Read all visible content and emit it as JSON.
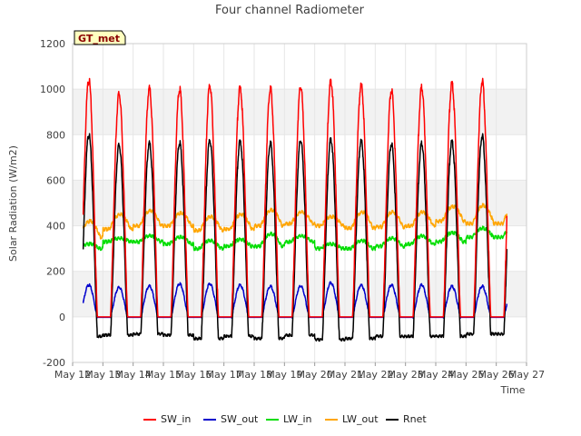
{
  "chart_data": {
    "type": "line",
    "title": "Four channel Radiometer",
    "xlabel": "Time",
    "ylabel": "Solar Radiation (W/m2)",
    "badge": "GT_met",
    "ylim": [
      -200,
      1200
    ],
    "yticks": [
      -200,
      0,
      200,
      400,
      600,
      800,
      1000,
      1200
    ],
    "x_days": [
      12,
      13,
      14,
      15,
      16,
      17,
      18,
      19,
      20,
      21,
      22,
      23,
      24,
      25,
      26,
      27
    ],
    "x_tick_labels": [
      "May 12",
      "May 13",
      "May 14",
      "May 15",
      "May 16",
      "May 17",
      "May 18",
      "May 19",
      "May 20",
      "May 21",
      "May 22",
      "May 23",
      "May 24",
      "May 25",
      "May 26",
      "May 27"
    ],
    "data_start_day": 12.35,
    "data_end_day": 26.35,
    "daily": {
      "days": [
        12,
        13,
        14,
        15,
        16,
        17,
        18,
        19,
        20,
        21,
        22,
        23,
        24,
        25
      ],
      "sw_in_peak": [
        1040,
        980,
        1000,
        1000,
        1015,
        1005,
        1005,
        1010,
        1035,
        1020,
        995,
        1005,
        1025,
        1035
      ],
      "sw_out_peak": [
        140,
        130,
        135,
        145,
        145,
        140,
        135,
        135,
        150,
        140,
        140,
        140,
        135,
        135
      ],
      "lw_in_night": [
        300,
        330,
        330,
        320,
        300,
        310,
        310,
        330,
        300,
        300,
        310,
        320,
        330,
        350
      ],
      "lw_in_day": [
        320,
        345,
        355,
        350,
        335,
        340,
        365,
        355,
        320,
        335,
        345,
        355,
        370,
        390
      ],
      "lw_out_night": [
        350,
        385,
        400,
        400,
        380,
        385,
        400,
        410,
        400,
        390,
        395,
        400,
        420,
        410
      ],
      "lw_out_day": [
        420,
        450,
        465,
        455,
        440,
        450,
        470,
        460,
        440,
        460,
        460,
        460,
        485,
        490
      ],
      "rnet_peak": [
        800,
        755,
        760,
        765,
        775,
        770,
        765,
        775,
        780,
        775,
        760,
        760,
        770,
        795
      ],
      "rnet_night": [
        -85,
        -80,
        -75,
        -80,
        -95,
        -85,
        -95,
        -80,
        -100,
        -95,
        -85,
        -85,
        -85,
        -75
      ]
    },
    "series": [
      {
        "name": "SW_in",
        "color": "#ff0000"
      },
      {
        "name": "SW_out",
        "color": "#0000cc"
      },
      {
        "name": "LW_in",
        "color": "#00dd00"
      },
      {
        "name": "LW_out",
        "color": "#ffa500"
      },
      {
        "name": "Rnet",
        "color": "#000000"
      }
    ],
    "legend_position": "bottom-center"
  }
}
